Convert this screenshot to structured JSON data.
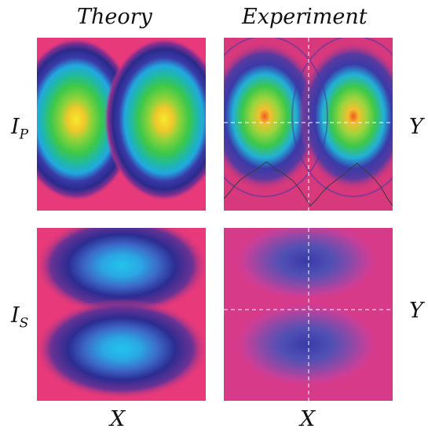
{
  "columns": {
    "theory": "Theory",
    "experiment": "Experiment"
  },
  "rows": {
    "ip": {
      "main": "I",
      "sub": "P"
    },
    "is": {
      "main": "I",
      "sub": "S"
    }
  },
  "axes": {
    "x_left": "X",
    "x_right": "X",
    "y_top": "Y",
    "y_bottom": "Y"
  },
  "colors": {
    "background": "#e8397a",
    "dark_blue": "#2a2a8c",
    "cyan": "#22bde8",
    "green": "#3cc84a",
    "yellow": "#f2e830",
    "orange": "#ee6a22"
  }
}
